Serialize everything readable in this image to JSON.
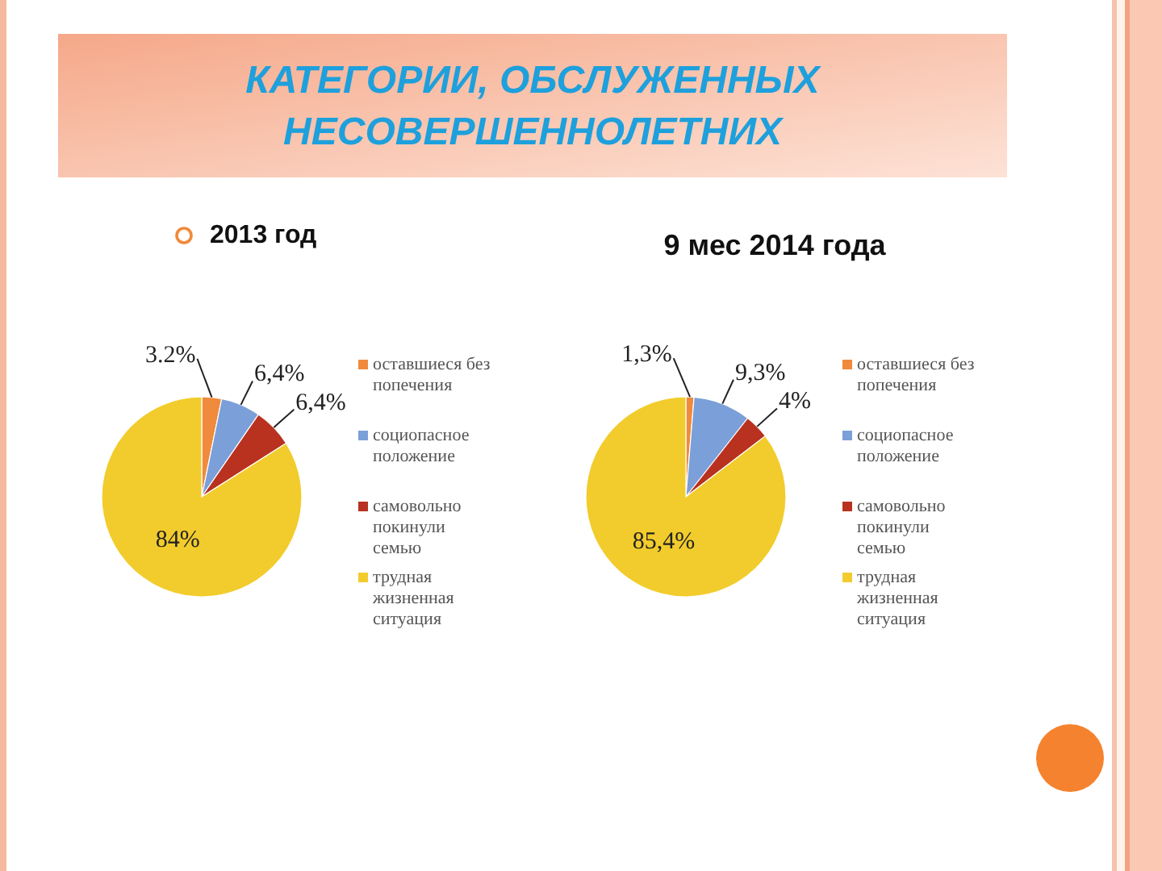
{
  "chart_data": [
    {
      "type": "other",
      "title": "КАТЕГОРИИ, ОБСЛУЖЕННЫХ НЕСОВЕРШЕННОЛЕТНИХ"
    },
    {
      "type": "pie",
      "title": "2013 год",
      "categories": [
        "оставшиеся без попечения",
        "социопасное положение",
        "самовольно покинули семью",
        "трудная жизненная ситуация"
      ],
      "values": [
        3.2,
        6.4,
        6.4,
        84
      ],
      "colors": [
        "#f08a3c",
        "#7b9fd8",
        "#b8321f",
        "#f2cc2c"
      ],
      "value_labels": [
        "3.2%",
        "6,4%",
        "6,4%",
        "84%"
      ],
      "legend": "right"
    },
    {
      "type": "pie",
      "title": "9 мес 2014 года",
      "categories": [
        "оставшиеся без попечения",
        "социопасное положение",
        "самовольно покинули семью",
        "трудная жизненная ситуация"
      ],
      "values": [
        1.3,
        9.3,
        4,
        85.4
      ],
      "colors": [
        "#f08a3c",
        "#7b9fd8",
        "#b8321f",
        "#f2cc2c"
      ],
      "value_labels": [
        "1,3%",
        "9,3%",
        "4%",
        "85,4%"
      ],
      "legend": "right"
    }
  ]
}
